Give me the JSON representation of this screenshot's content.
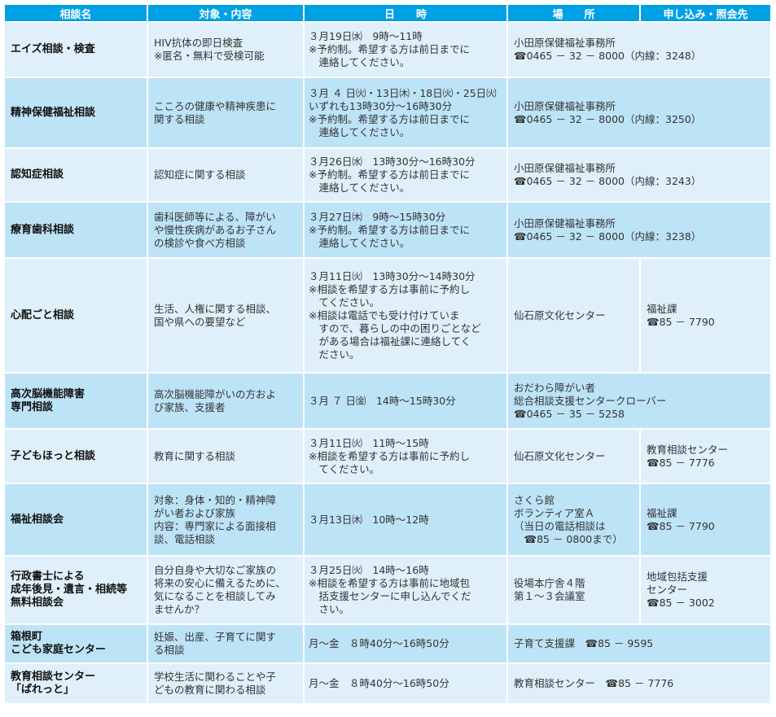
{
  "header": [
    "相談名",
    "対象・内容",
    "日　　時",
    "場　　所",
    "申し込み・照会先"
  ],
  "colors": {
    "header": "#00a0e4",
    "row_light": "#dff0fa",
    "row_dark": "#bde3f7"
  },
  "rows": [
    {
      "name": [
        "エイズ相談・検査"
      ],
      "content": [
        "HIV抗体の即日検査",
        "※匿名・無料で受検可能"
      ],
      "when": [
        "３月19日㈬　9時～11時",
        "※予約制。希望する方は前日までに",
        "　連絡してください。"
      ],
      "place": [
        "小田原保健福祉事務所",
        "☎0465 － 32 － 8000（内線：3248）"
      ],
      "contact": null
    },
    {
      "name": [
        "精神保健福祉相談"
      ],
      "content": [
        "こころの健康や精神疾患に",
        "関する相談"
      ],
      "when": [
        "３月 ４ 日㈫・13日㈭・18日㈫・25日㈫",
        "いずれも13時30分～16時30分",
        "※予約制。希望する方は前日までに",
        "　連絡してください。"
      ],
      "place": [
        "小田原保健福祉事務所",
        "☎0465 － 32 － 8000（内線：3250）"
      ],
      "contact": null
    },
    {
      "name": [
        "認知症相談"
      ],
      "content": [
        "認知症に関する相談"
      ],
      "when": [
        "３月26日㈬　13時30分～16時30分",
        "※予約制。希望する方は前日までに",
        "　連絡してください。"
      ],
      "place": [
        "小田原保健福祉事務所",
        "☎0465 － 32 － 8000（内線：3243）"
      ],
      "contact": null
    },
    {
      "name": [
        "療育歯科相談"
      ],
      "content": [
        "歯科医師等による、障がい",
        "や慢性疾病があるお子さん",
        "の検診や食べ方相談"
      ],
      "when": [
        "３月27日㈭　9時～15時30分",
        "※予約制。希望する方は前日までに",
        "　連絡してください。"
      ],
      "place": [
        "小田原保健福祉事務所",
        "☎0465 － 32 － 8000（内線：3238）"
      ],
      "contact": null
    },
    {
      "name": [
        "心配ごと相談"
      ],
      "content": [
        "生活、人権に関する相談、",
        "国や県への要望など"
      ],
      "when": [
        "３月11日㈫　13時30分～14時30分",
        "※相談を希望する方は事前に予約し",
        "　てください。",
        "※相談は電話でも受け付けていま",
        "　すので、暮らしの中の困りごとなど",
        "　がある場合は福祉課に連絡してく",
        "　ださい。"
      ],
      "place": [
        "仙石原文化センター"
      ],
      "contact": [
        "福祉課",
        "☎85 － 7790"
      ]
    },
    {
      "name": [
        "高次脳機能障害",
        "専門相談"
      ],
      "content": [
        "高次脳機能障がいの方およ",
        "び家族、支援者"
      ],
      "when": [
        "３月 ７ 日㈮　14時～15時30分"
      ],
      "place": [
        "おだわら障がい者",
        "総合相談支援センタークローバー",
        "☎0465 － 35 － 5258"
      ],
      "contact": null
    },
    {
      "name": [
        "子どもほっと相談"
      ],
      "content": [
        "教育に関する相談"
      ],
      "when": [
        "３月11日㈫　11時～15時",
        "※相談を希望する方は事前に予約し",
        "　てください。"
      ],
      "place": [
        "仙石原文化センター"
      ],
      "contact": [
        "教育相談センター",
        "☎85 － 7776"
      ]
    },
    {
      "name": [
        "福祉相談会"
      ],
      "content": [
        "対象：身体・知的・精神障",
        "がい者および家族",
        "内容：専門家による面接相",
        "談、電話相談"
      ],
      "when": [
        "３月13日㈭　10時～12時"
      ],
      "place": [
        "さくら館",
        "ボランティア室Ａ",
        "（当日の電話相談は",
        "　☎85 － 0800まで）"
      ],
      "contact": [
        "福祉課",
        "☎85 － 7790"
      ]
    },
    {
      "name": [
        "行政書士による",
        "成年後見・遺言・相続等",
        "無料相談会"
      ],
      "content": [
        "自分自身や大切なご家族の",
        "将来の安心に備えるために、",
        "気になることを相談してみ",
        "ませんか？"
      ],
      "when": [
        "３月25日㈫　14時～16時",
        "※相談を希望する方は事前に地域包",
        "　括支援センターに申し込んでくだ",
        "　さい。"
      ],
      "place": [
        "役場本庁舎４階",
        "第１～３会議室"
      ],
      "contact": [
        "地域包括支援",
        "センター",
        "☎85 － 3002"
      ]
    },
    {
      "name": [
        "箱根町",
        "こども家庭センター"
      ],
      "content": [
        "妊娠、出産、子育てに関す",
        "る相談"
      ],
      "when": [
        "月～金　８時40分～16時50分"
      ],
      "place": [
        "子育て支援課　☎85 － 9595"
      ],
      "contact": null
    },
    {
      "name": [
        "教育相談センター",
        "「ぱれっと」"
      ],
      "content": [
        "学校生活に関わることや子",
        "どもの教育に関わる相談"
      ],
      "when": [
        "月～金　８時40分～16時50分"
      ],
      "place": [
        "教育相談センター　☎85 － 7776"
      ],
      "contact": null
    }
  ]
}
